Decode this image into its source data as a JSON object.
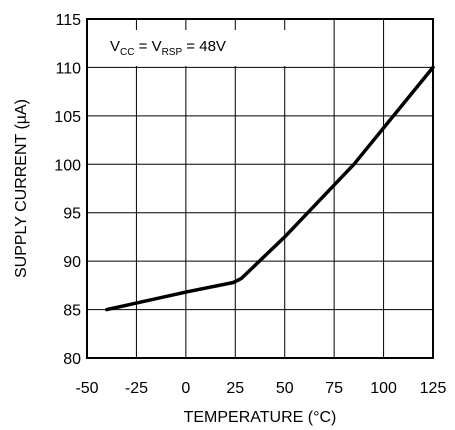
{
  "chart_data": {
    "type": "line",
    "xlabel": "TEMPERATURE (°C)",
    "ylabel": "SUPPLY CURRENT (µA)",
    "xlim": [
      -50,
      125
    ],
    "ylim": [
      80,
      115
    ],
    "xticks": [
      -50,
      -25,
      0,
      25,
      50,
      75,
      100,
      125
    ],
    "yticks": [
      80,
      85,
      90,
      95,
      100,
      105,
      110,
      115
    ],
    "grid": true,
    "annotation": {
      "v_main": "V",
      "cc_sub": "CC",
      "eq1": " = V",
      "rsp_sub": "RSP",
      "eq2": " = 48V"
    },
    "series": [
      {
        "x": [
          -40,
          0,
          24,
          28,
          50,
          85,
          125
        ],
        "y": [
          85.0,
          86.8,
          87.8,
          88.2,
          92.5,
          100.0,
          110.0
        ]
      }
    ]
  }
}
